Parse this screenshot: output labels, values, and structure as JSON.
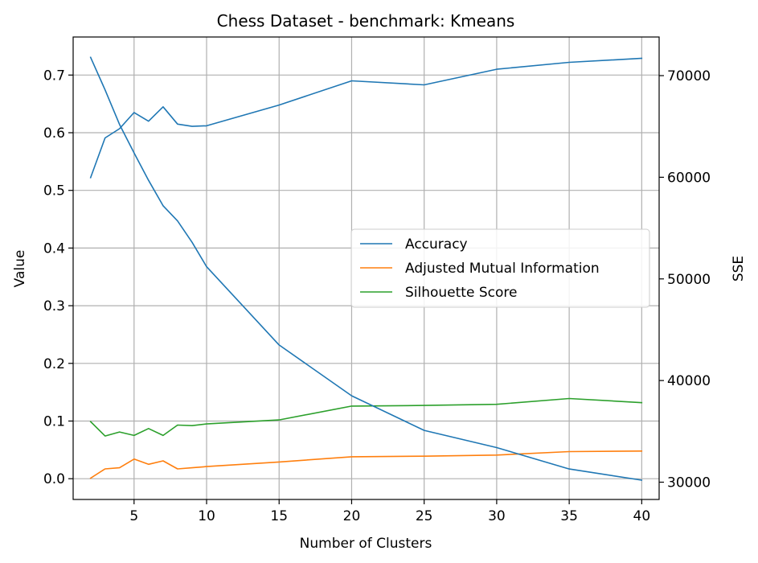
{
  "chart_data": {
    "type": "line",
    "title": "Chess Dataset - benchmark: Kmeans",
    "xlabel": "Number of Clusters",
    "ylabel": "Value",
    "y2label": "SSE",
    "xlim": [
      0.8,
      41.2
    ],
    "ylim": [
      -0.036,
      0.766
    ],
    "y2lim": [
      28300,
      73800
    ],
    "x_ticks": [
      5,
      10,
      15,
      20,
      25,
      30,
      35,
      40
    ],
    "y_ticks": [
      0.0,
      0.1,
      0.2,
      0.3,
      0.4,
      0.5,
      0.6,
      0.7
    ],
    "y_tick_labels": [
      "0.0",
      "0.1",
      "0.2",
      "0.3",
      "0.4",
      "0.5",
      "0.6",
      "0.7"
    ],
    "y2_ticks": [
      30000,
      40000,
      50000,
      60000,
      70000
    ],
    "y2_tick_labels": [
      "30000",
      "40000",
      "50000",
      "60000",
      "70000"
    ],
    "grid": true,
    "legend_position": "center-right",
    "x": [
      2,
      3,
      4,
      5,
      6,
      7,
      8,
      9,
      10,
      15,
      20,
      25,
      30,
      35,
      40
    ],
    "series": [
      {
        "name": "Accuracy",
        "axis": "left",
        "color": "#1f77b4",
        "values": [
          0.522,
          0.591,
          0.607,
          0.635,
          0.62,
          0.645,
          0.615,
          0.611,
          0.612,
          0.648,
          0.69,
          0.683,
          0.71,
          0.722,
          0.729
        ]
      },
      {
        "name": "Adjusted Mutual Information",
        "axis": "left",
        "color": "#ff7f0e",
        "values": [
          0.001,
          0.017,
          0.019,
          0.034,
          0.025,
          0.031,
          0.017,
          0.019,
          0.021,
          0.029,
          0.038,
          0.039,
          0.041,
          0.047,
          0.048
        ]
      },
      {
        "name": "Silhouette Score",
        "axis": "left",
        "color": "#2ca02c",
        "values": [
          0.099,
          0.074,
          0.081,
          0.075,
          0.087,
          0.075,
          0.093,
          0.092,
          0.095,
          0.102,
          0.126,
          0.127,
          0.129,
          0.139,
          0.132
        ]
      },
      {
        "name": "",
        "axis": "right",
        "color": "#1f77b4",
        "values": [
          71800,
          68600,
          65200,
          62400,
          59700,
          57200,
          55700,
          53600,
          51200,
          43500,
          38500,
          35100,
          33400,
          31300,
          30200
        ]
      }
    ]
  }
}
